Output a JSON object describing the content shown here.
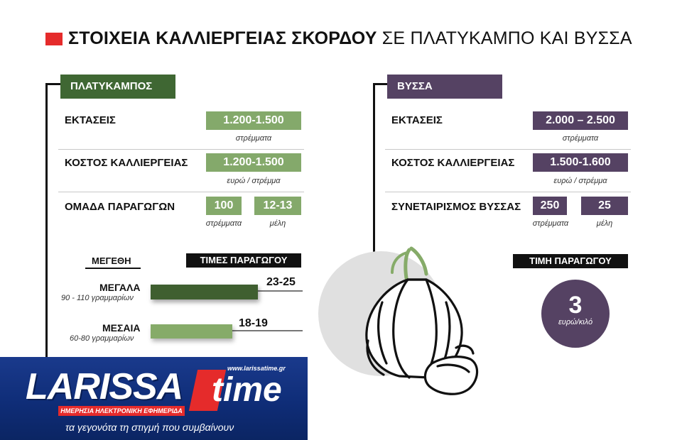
{
  "title": {
    "bold": "ΣΤΟΙΧΕΙΑ ΚΑΛΛΙΕΡΓΕΙΑΣ ΣΚΟΡΔΟΥ",
    "light": "ΣΕ ΠΛΑΤΥΚΑΜΠΟ ΚΑΙ ΒΥΣΣΑ"
  },
  "colors": {
    "green_dark": "#3f6733",
    "green_light": "#84a96b",
    "purple": "#554263",
    "red": "#e52b2b"
  },
  "platykampos": {
    "name": "ΠΛΑΤΥΚΑΜΠΟΣ",
    "area": {
      "label": "ΕΚΤΑΣΕΙΣ",
      "value": "1.200-1.500",
      "unit": "στρέμματα"
    },
    "cost": {
      "label": "ΚΟΣΤΟΣ ΚΑΛΛΙΕΡΓΕΙΑΣ",
      "value": "1.200-1.500",
      "unit": "ευρώ / στρέμμα"
    },
    "group": {
      "label": "ΟΜΑΔΑ ΠΑΡΑΓΩΓΩΝ",
      "value1": "100",
      "unit1": "στρέμματα",
      "value2": "12-13",
      "unit2": "μέλη"
    },
    "sizes_header": "ΜΕΓΕΘΗ",
    "prices_header": "ΤΙΜΕΣ ΠΑΡΑΓΩΓΟΥ",
    "sizes": [
      {
        "name": "ΜΕΓΑΛΑ",
        "sub": "90 - 110 γραμμαρίων",
        "price": "23-25"
      },
      {
        "name": "ΜΕΣΑΙΑ",
        "sub": "60-80 γραμμαρίων",
        "price": "18-19"
      }
    ]
  },
  "vyssa": {
    "name": "ΒΥΣΣΑ",
    "area": {
      "label": "ΕΚΤΑΣΕΙΣ",
      "value": "2.000 – 2.500",
      "unit": "στρέμματα"
    },
    "cost": {
      "label": "ΚΟΣΤΟΣ ΚΑΛΛΙΕΡΓΕΙΑΣ",
      "value": "1.500-1.600",
      "unit": "ευρώ / στρέμμα"
    },
    "coop": {
      "label": "ΣΥΝΕΤΑΙΡΙΣΜΟΣ ΒΥΣΣΑΣ",
      "value1": "250",
      "unit1": "στρέμματα",
      "value2": "25",
      "unit2": "μέλη"
    },
    "price_header": "ΤΙΜΗ ΠΑΡΑΓΩΓΟΥ",
    "price_value": "3",
    "price_unit": "ευρώ/κιλό"
  },
  "footer": {
    "logo_word": "LARISSA",
    "logo_time": "time",
    "url": "www.larissatime.gr",
    "tagline": "ΗΜΕΡΗΣΙΑ ΗΛΕΚΤΡΟΝΙΚΗ ΕΦΗΜΕΡΙΔΑ",
    "slogan": "τα γεγονότα τη στιγμή που συμβαίνουν"
  }
}
